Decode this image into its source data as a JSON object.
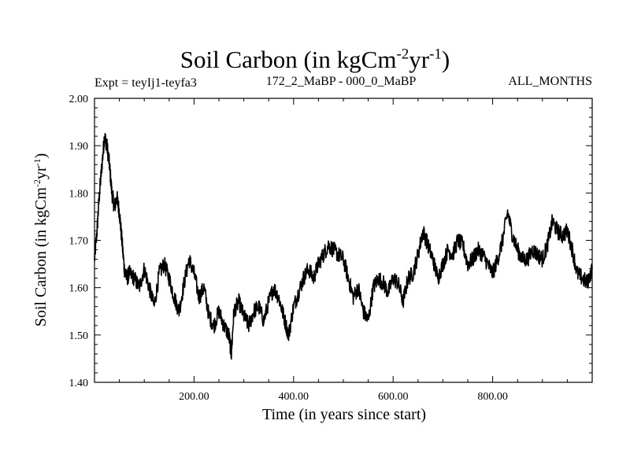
{
  "chart_data": {
    "type": "line",
    "title_main": "Soil Carbon (in kgCm",
    "title_exp1": "-2",
    "title_mid": "yr",
    "title_exp2": "-1",
    "title_close": ")",
    "experiment": "Expt = teyIj1-teyfa3",
    "period": "172_2_MaBP - 000_0_MaBP",
    "months": "ALL_MONTHS",
    "xlabel": "Time (in years since start)",
    "ylabel_main": "Soil Carbon (in kgCm",
    "ylabel_exp1": "-2",
    "ylabel_mid": "yr",
    "ylabel_exp2": "-1",
    "ylabel_close": ")",
    "xlim": [
      0,
      1000
    ],
    "ylim": [
      1.4,
      2.0
    ],
    "xticks": [
      200,
      400,
      600,
      800
    ],
    "xtick_labels": [
      "200.00",
      "400.00",
      "600.00",
      "800.00"
    ],
    "yticks": [
      1.4,
      1.5,
      1.6,
      1.7,
      1.8,
      1.9,
      2.0
    ],
    "ytick_labels": [
      "1.40",
      "1.50",
      "1.60",
      "1.70",
      "1.80",
      "1.90",
      "2.00"
    ],
    "series": [
      {
        "name": "Soil Carbon",
        "color": "#000000",
        "x": [
          0,
          5,
          10,
          15,
          20,
          25,
          30,
          35,
          40,
          45,
          50,
          55,
          60,
          65,
          70,
          80,
          90,
          100,
          110,
          120,
          130,
          140,
          150,
          160,
          170,
          180,
          190,
          200,
          210,
          220,
          230,
          240,
          250,
          260,
          270,
          275,
          280,
          290,
          300,
          310,
          320,
          330,
          340,
          350,
          360,
          370,
          380,
          390,
          400,
          410,
          420,
          430,
          440,
          450,
          460,
          470,
          480,
          490,
          500,
          510,
          520,
          530,
          540,
          550,
          560,
          570,
          580,
          590,
          600,
          610,
          620,
          630,
          640,
          650,
          660,
          670,
          680,
          690,
          700,
          710,
          720,
          730,
          740,
          750,
          760,
          770,
          780,
          790,
          800,
          810,
          820,
          830,
          840,
          850,
          860,
          870,
          880,
          890,
          900,
          910,
          920,
          930,
          940,
          950,
          960,
          970,
          980,
          990,
          1000
        ],
        "values": [
          1.66,
          1.72,
          1.8,
          1.86,
          1.92,
          1.9,
          1.86,
          1.8,
          1.77,
          1.79,
          1.76,
          1.7,
          1.64,
          1.62,
          1.63,
          1.62,
          1.6,
          1.64,
          1.6,
          1.56,
          1.63,
          1.65,
          1.62,
          1.58,
          1.55,
          1.61,
          1.66,
          1.63,
          1.58,
          1.6,
          1.54,
          1.52,
          1.55,
          1.52,
          1.5,
          1.46,
          1.55,
          1.57,
          1.54,
          1.52,
          1.55,
          1.56,
          1.53,
          1.57,
          1.6,
          1.58,
          1.54,
          1.5,
          1.56,
          1.59,
          1.62,
          1.64,
          1.62,
          1.65,
          1.67,
          1.69,
          1.68,
          1.67,
          1.66,
          1.62,
          1.58,
          1.6,
          1.55,
          1.53,
          1.6,
          1.62,
          1.61,
          1.59,
          1.62,
          1.61,
          1.57,
          1.62,
          1.63,
          1.67,
          1.72,
          1.69,
          1.66,
          1.62,
          1.65,
          1.68,
          1.67,
          1.7,
          1.69,
          1.65,
          1.66,
          1.68,
          1.67,
          1.65,
          1.63,
          1.66,
          1.7,
          1.76,
          1.71,
          1.68,
          1.66,
          1.66,
          1.68,
          1.67,
          1.66,
          1.69,
          1.74,
          1.72,
          1.71,
          1.72,
          1.68,
          1.63,
          1.62,
          1.61,
          1.64
        ]
      }
    ]
  }
}
